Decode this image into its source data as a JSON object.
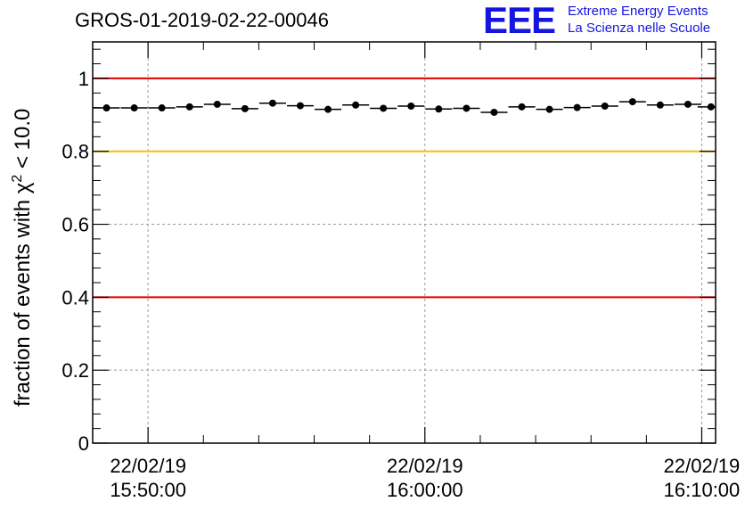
{
  "header": {
    "title": "GROS-01-2019-02-22-00046",
    "logo_mark": "EEE",
    "logo_line1": "Extreme Energy Events",
    "logo_line2": "La Scienza nelle Scuole"
  },
  "colors": {
    "upper_limit": "#e00000",
    "lower_limit": "#e00000",
    "warning_line": "#f5c000",
    "points": "#000000",
    "logo": "#1515e0"
  },
  "chart_data": {
    "type": "scatter",
    "ylabel": "fraction of events with χ² < 10.0",
    "ylabel_parts": {
      "main": "fraction of events with χ",
      "sup": "2",
      "tail": " < 10.0"
    },
    "ylim": [
      0,
      1.1
    ],
    "xlim": [
      "15:48:00",
      "16:10:30"
    ],
    "grid": true,
    "y_ticks": [
      "0",
      "0.2",
      "0.4",
      "0.6",
      "0.8",
      "1"
    ],
    "x_ticks": [
      {
        "date": "22/02/19",
        "time": "15:50:00"
      },
      {
        "date": "22/02/19",
        "time": "16:00:00"
      },
      {
        "date": "22/02/19",
        "time": "16:10:00"
      }
    ],
    "reference_lines": [
      {
        "y": 1.0,
        "color": "#e00000"
      },
      {
        "y": 0.8,
        "color": "#f5c000"
      },
      {
        "y": 0.4,
        "color": "#e00000"
      }
    ],
    "series": [
      {
        "x": [
          "15:48:30",
          "15:49:30",
          "15:50:30",
          "15:51:30",
          "15:52:30",
          "15:53:30",
          "15:54:30",
          "15:55:30",
          "15:56:30",
          "15:57:30",
          "15:58:30",
          "15:59:30",
          "16:00:30",
          "16:01:30",
          "16:02:30",
          "16:03:30",
          "16:04:30",
          "16:05:30",
          "16:06:30",
          "16:07:30",
          "16:08:30",
          "16:09:30",
          "16:10:20"
        ],
        "values": [
          0.919,
          0.919,
          0.919,
          0.922,
          0.929,
          0.917,
          0.932,
          0.925,
          0.915,
          0.927,
          0.918,
          0.924,
          0.916,
          0.918,
          0.907,
          0.922,
          0.915,
          0.92,
          0.924,
          0.936,
          0.927,
          0.929,
          0.922
        ]
      }
    ]
  }
}
